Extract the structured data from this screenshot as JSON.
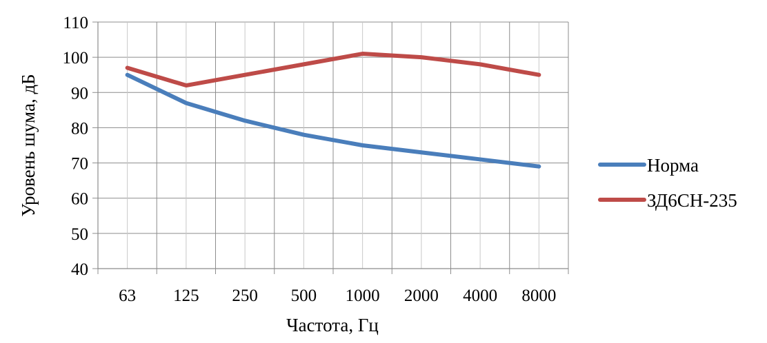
{
  "chart_data": {
    "type": "line",
    "categories": [
      "63",
      "125",
      "250",
      "500",
      "1000",
      "2000",
      "4000",
      "8000"
    ],
    "series": [
      {
        "name": "Норма",
        "color": "#4A7EBB",
        "values": [
          95,
          87,
          82,
          78,
          75,
          73,
          71,
          69
        ]
      },
      {
        "name": "ЗД6СН-235",
        "color": "#BE4B48",
        "values": [
          97,
          92,
          95,
          98,
          101,
          100,
          98,
          95
        ]
      }
    ],
    "xlabel": "Частота, Гц",
    "ylabel": "Уровень шума, дБ",
    "ylim": [
      40,
      110
    ],
    "ytick_step": 10,
    "grid": true,
    "legend": "right"
  }
}
